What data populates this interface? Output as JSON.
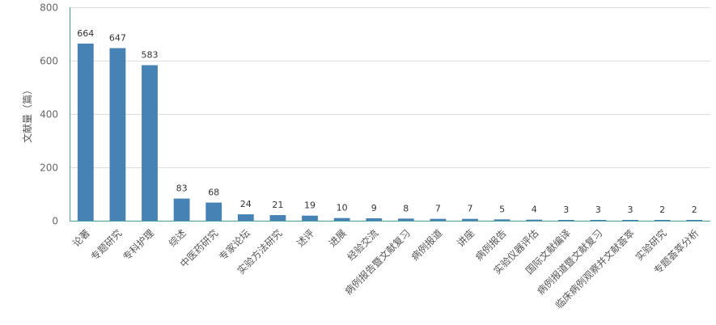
{
  "chart_data": {
    "type": "bar",
    "ylabel": "文献量（篇）",
    "ylim": [
      0,
      800
    ],
    "yticks": [
      0,
      200,
      400,
      600,
      800
    ],
    "grid": true,
    "categories": [
      "论著",
      "专题研究",
      "专科护理",
      "综述",
      "中医药研究",
      "专家论坛",
      "实验方法研究",
      "述评",
      "进展",
      "经验交流",
      "病例报告暨文献复习",
      "病例报道",
      "讲座",
      "病例报告",
      "实验仪器评估",
      "国际文献编译",
      "病例报道暨文献复习",
      "临床病例观察并文献荟萃",
      "实验研究",
      "专题荟萃分析"
    ],
    "values": [
      664,
      647,
      583,
      83,
      68,
      24,
      21,
      19,
      10,
      9,
      8,
      7,
      7,
      5,
      4,
      3,
      3,
      3,
      2,
      2
    ],
    "bar_color": "#4682b4"
  }
}
